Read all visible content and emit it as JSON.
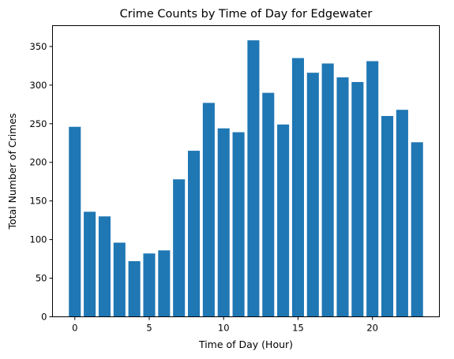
{
  "chart_data": {
    "type": "bar",
    "title": "Crime Counts by Time of Day for Edgewater",
    "xlabel": "Time of Day (Hour)",
    "ylabel": "Total Number of Crimes",
    "x": [
      0,
      1,
      2,
      3,
      4,
      5,
      6,
      7,
      8,
      9,
      10,
      11,
      12,
      13,
      14,
      15,
      16,
      17,
      18,
      19,
      20,
      21,
      22,
      23
    ],
    "values": [
      246,
      136,
      130,
      96,
      72,
      82,
      86,
      178,
      215,
      277,
      244,
      239,
      358,
      290,
      249,
      335,
      316,
      328,
      310,
      304,
      331,
      260,
      268,
      226
    ],
    "xlim": [
      -1.5,
      24.5
    ],
    "ylim": [
      0,
      377
    ],
    "xticks": [
      0,
      5,
      10,
      15,
      20
    ],
    "yticks": [
      0,
      50,
      100,
      150,
      200,
      250,
      300,
      350
    ],
    "bar_color": "#1f77b4",
    "grid": false,
    "legend": false
  }
}
